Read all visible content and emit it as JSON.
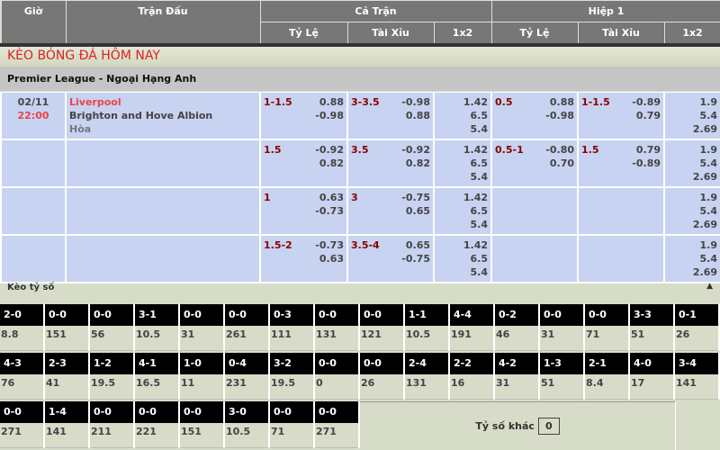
{
  "header": {
    "gio": "Giờ",
    "tran_dau": "Trận Đấu",
    "ca_tran": "Cả Trận",
    "hiep1": "Hiệp 1",
    "ty_le": "Tỷ Lệ",
    "tai_xiu": "Tài Xỉu",
    "x12": "1x2"
  },
  "title": "KÈO BÓNG ĐÁ HÔM NAY",
  "league": "Premier League - Ngoại Hạng Anh",
  "match": {
    "date": "02/11",
    "time": "22:00",
    "home": "Liverpool",
    "away": "Brighton and Hove Albion",
    "draw": "Hòa"
  },
  "rows": [
    {
      "tl": [
        "1-1.5",
        "0.88",
        "-0.98"
      ],
      "tx": [
        "3-3.5",
        "-0.98",
        "0.88"
      ],
      "x12": [
        "1.42",
        "6.5",
        "5.4"
      ],
      "h1tl": [
        "0.5",
        "0.88",
        "-0.98"
      ],
      "h1tx": [
        "1-1.5",
        "-0.89",
        "0.79"
      ],
      "h1x12": [
        "1.9",
        "5.4",
        "2.69"
      ]
    },
    {
      "tl": [
        "1.5",
        "-0.92",
        "0.82"
      ],
      "tx": [
        "3.5",
        "-0.92",
        "0.82"
      ],
      "x12": [
        "1.42",
        "6.5",
        "5.4"
      ],
      "h1tl": [
        "0.5-1",
        "-0.80",
        "0.70"
      ],
      "h1tx": [
        "1.5",
        "0.79",
        "-0.89"
      ],
      "h1x12": [
        "1.9",
        "5.4",
        "2.69"
      ]
    },
    {
      "tl": [
        "1",
        "0.63",
        "-0.73"
      ],
      "tx": [
        "3",
        "-0.75",
        "0.65"
      ],
      "x12": [
        "1.42",
        "6.5",
        "5.4"
      ],
      "h1tl": [
        "",
        "",
        ""
      ],
      "h1tx": [
        "",
        "",
        ""
      ],
      "h1x12": [
        "1.9",
        "5.4",
        "2.69"
      ]
    },
    {
      "tl": [
        "1.5-2",
        "-0.73",
        "0.63"
      ],
      "tx": [
        "3.5-4",
        "0.65",
        "-0.75"
      ],
      "x12": [
        "1.42",
        "6.5",
        "5.4"
      ],
      "h1tl": [
        "",
        "",
        ""
      ],
      "h1tx": [
        "",
        "",
        ""
      ],
      "h1x12": [
        "1.9",
        "5.4",
        "2.69"
      ]
    }
  ],
  "keo_ty_so": {
    "label": "Kèo tỷ số",
    "collapse_icon": "triangle-up-icon",
    "rows": [
      [
        [
          "2-0",
          "8.8"
        ],
        [
          "0-0",
          "151"
        ],
        [
          "0-0",
          "56"
        ],
        [
          "3-1",
          "10.5"
        ],
        [
          "0-0",
          "31"
        ],
        [
          "0-0",
          "261"
        ],
        [
          "0-3",
          "111"
        ],
        [
          "0-0",
          "131"
        ],
        [
          "0-0",
          "121"
        ],
        [
          "1-1",
          "10.5"
        ],
        [
          "4-4",
          "191"
        ],
        [
          "0-2",
          "46"
        ],
        [
          "0-0",
          "31"
        ],
        [
          "0-0",
          "71"
        ],
        [
          "3-3",
          "51"
        ],
        [
          "0-1",
          "26"
        ]
      ],
      [
        [
          "4-3",
          "76"
        ],
        [
          "2-3",
          "41"
        ],
        [
          "1-2",
          "19.5"
        ],
        [
          "4-1",
          "16.5"
        ],
        [
          "1-0",
          "11"
        ],
        [
          "0-4",
          "231"
        ],
        [
          "3-2",
          "19.5"
        ],
        [
          "0-0",
          "0"
        ],
        [
          "0-0",
          "26"
        ],
        [
          "2-4",
          "131"
        ],
        [
          "2-2",
          "16"
        ],
        [
          "4-2",
          "31"
        ],
        [
          "1-3",
          "51"
        ],
        [
          "2-1",
          "8.4"
        ],
        [
          "4-0",
          "17"
        ],
        [
          "3-4",
          "141"
        ]
      ],
      [
        [
          "0-0",
          "271"
        ],
        [
          "1-4",
          "141"
        ],
        [
          "0-0",
          "211"
        ],
        [
          "0-0",
          "221"
        ],
        [
          "0-0",
          "151"
        ],
        [
          "3-0",
          "10.5"
        ],
        [
          "0-0",
          "71"
        ],
        [
          "0-0",
          "271"
        ]
      ]
    ],
    "other_label": "Tỷ số khác",
    "other_value": "0"
  },
  "colors": {
    "header": "#777777",
    "row": "#c7d3f0",
    "handicap": "#8b0000",
    "home": "#ee4444",
    "title": "#dd2222"
  }
}
